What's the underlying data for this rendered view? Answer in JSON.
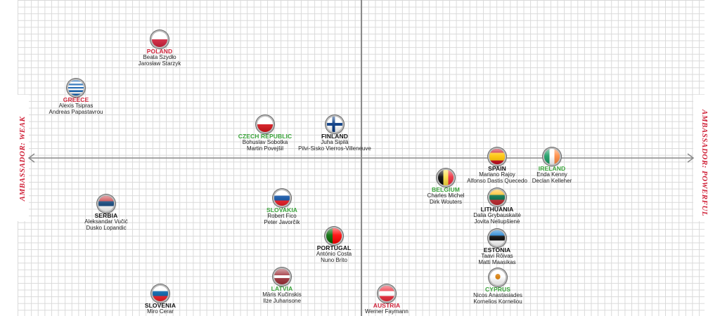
{
  "axis": {
    "left_label": "AMBASSADOR: WEAK",
    "right_label": "AMBASSADOR: POWERFUL"
  },
  "colors": {
    "red": "#d0233a",
    "green": "#3aa43a",
    "black": "#111111"
  },
  "entries": [
    {
      "country": "POLAND",
      "color": "red",
      "flag": "flag-poland",
      "people": [
        "Beata Szydło",
        "Jarosław Starzyk"
      ]
    },
    {
      "country": "GREECE",
      "color": "red",
      "flag": "flag-greece",
      "people": [
        "Alexis Tsipras",
        "Andreas Papastavrou"
      ]
    },
    {
      "country": "CZECH REPUBLIC",
      "color": "green",
      "flag": "flag-czech-republic",
      "people": [
        "Bohuslav Sobotka",
        "Martin Povejšil"
      ]
    },
    {
      "country": "FINLAND",
      "color": "black",
      "flag": "flag-finland",
      "people": [
        "Juha Sipilä",
        "Pilvi-Sisko Vierros-Villeneuve"
      ]
    },
    {
      "country": "SPAIN",
      "color": "black",
      "flag": "flag-spain",
      "people": [
        "Mariano Rajoy",
        "Alfonso Dastis Quecedo"
      ]
    },
    {
      "country": "IRELAND",
      "color": "green",
      "flag": "flag-ireland",
      "people": [
        "Enda Kenny",
        "Declan Kelleher"
      ]
    },
    {
      "country": "BELGIUM",
      "color": "green",
      "flag": "flag-belgium",
      "people": [
        "Charles Michel",
        "Dirk Wouters"
      ]
    },
    {
      "country": "LITHUANIA",
      "color": "black",
      "flag": "flag-lithuania",
      "people": [
        "Dalia Grybauskaitė",
        "Jovita Neliupšienė"
      ]
    },
    {
      "country": "SERBIA",
      "color": "black",
      "flag": "flag-serbia",
      "people": [
        "Aleksandar Vučić",
        "Dusko Lopandic"
      ]
    },
    {
      "country": "SLOVAKIA",
      "color": "green",
      "flag": "flag-slovakia",
      "people": [
        "Robert Fico",
        "Peter Javorčík"
      ]
    },
    {
      "country": "PORTUGAL",
      "color": "black",
      "flag": "flag-portugal",
      "people": [
        "António Costa",
        "Nuno Brito"
      ]
    },
    {
      "country": "ESTONIA",
      "color": "black",
      "flag": "flag-estonia",
      "people": [
        "Taavi Rõivas",
        "Matti Maasikas"
      ]
    },
    {
      "country": "CYPRUS",
      "color": "green",
      "flag": "flag-cyprus",
      "people": [
        "Nicos Anastasiades",
        "Kornelios Korneliou"
      ]
    },
    {
      "country": "LATVIA",
      "color": "green",
      "flag": "flag-latvia",
      "people": [
        "Māris Kučinskis",
        "Ilze Juhansone"
      ]
    },
    {
      "country": "SLOVENIA",
      "color": "black",
      "flag": "flag-slovenia",
      "people": [
        "Miro Cerar",
        ""
      ]
    },
    {
      "country": "AUSTRIA",
      "color": "red",
      "flag": "flag-austria",
      "people": [
        "Werner Faymann",
        ""
      ]
    }
  ]
}
